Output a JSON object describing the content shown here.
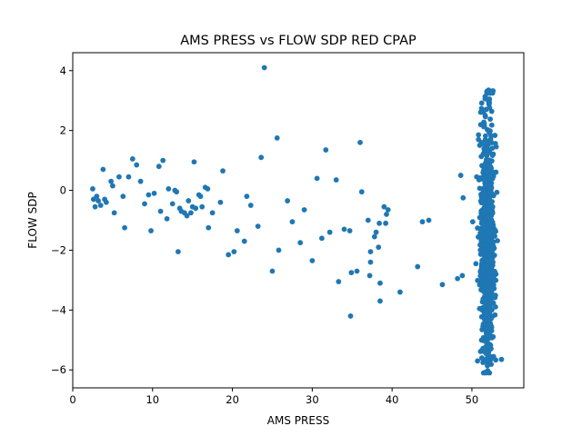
{
  "chart_data": {
    "type": "scatter",
    "title": "AMS PRESS vs FLOW SDP RED CPAP",
    "xlabel": "AMS PRESS",
    "ylabel": "FLOW SDP",
    "xlim": [
      0,
      56.5
    ],
    "ylim": [
      -6.6,
      4.6
    ],
    "xticks": [
      0,
      10,
      20,
      30,
      40,
      50
    ],
    "yticks": [
      -6,
      -4,
      -2,
      0,
      2,
      4
    ],
    "x_tick_labels": [
      "0",
      "10",
      "20",
      "30",
      "40",
      "50"
    ],
    "y_tick_labels": [
      "−6",
      "−4",
      "−2",
      "0",
      "2",
      "4"
    ],
    "grid": false,
    "marker_color": "#1f77b4",
    "series": [
      {
        "points": [
          [
            2.5,
            0.05
          ],
          [
            2.6,
            -0.3
          ],
          [
            2.8,
            -0.55
          ],
          [
            3.0,
            -0.2
          ],
          [
            3.2,
            -0.35
          ],
          [
            3.5,
            -0.5
          ],
          [
            3.8,
            0.7
          ],
          [
            4.0,
            -0.3
          ],
          [
            4.2,
            -0.4
          ],
          [
            4.8,
            0.3
          ],
          [
            5.0,
            0.15
          ],
          [
            5.2,
            -0.75
          ],
          [
            5.8,
            0.45
          ],
          [
            6.3,
            -0.2
          ],
          [
            6.5,
            -1.25
          ],
          [
            7.0,
            0.45
          ],
          [
            7.5,
            1.05
          ],
          [
            8.0,
            0.85
          ],
          [
            8.5,
            0.3
          ],
          [
            9.0,
            -0.45
          ],
          [
            9.5,
            -0.15
          ],
          [
            9.8,
            -1.35
          ],
          [
            10.2,
            -0.1
          ],
          [
            10.8,
            0.8
          ],
          [
            11.0,
            -0.7
          ],
          [
            11.3,
            1.0
          ],
          [
            11.8,
            -0.95
          ],
          [
            12.0,
            0.05
          ],
          [
            12.5,
            -0.45
          ],
          [
            12.8,
            0.0
          ],
          [
            13.0,
            -0.05
          ],
          [
            13.2,
            -2.05
          ],
          [
            13.4,
            -0.6
          ],
          [
            13.6,
            -0.7
          ],
          [
            14.0,
            -0.75
          ],
          [
            14.3,
            -0.85
          ],
          [
            14.5,
            -0.35
          ],
          [
            14.8,
            -0.75
          ],
          [
            15.0,
            -0.55
          ],
          [
            15.2,
            0.95
          ],
          [
            15.4,
            -0.6
          ],
          [
            15.8,
            -0.15
          ],
          [
            16.0,
            -0.2
          ],
          [
            16.2,
            -0.55
          ],
          [
            16.6,
            0.1
          ],
          [
            16.9,
            0.05
          ],
          [
            17.0,
            -1.25
          ],
          [
            17.5,
            -0.75
          ],
          [
            18.5,
            -0.4
          ],
          [
            18.8,
            0.65
          ],
          [
            19.5,
            -2.15
          ],
          [
            20.2,
            -2.05
          ],
          [
            20.6,
            -1.35
          ],
          [
            21.5,
            -1.7
          ],
          [
            21.8,
            -0.2
          ],
          [
            22.3,
            -0.5
          ],
          [
            23.2,
            -1.2
          ],
          [
            23.6,
            1.1
          ],
          [
            24.0,
            4.1
          ],
          [
            25.0,
            -2.7
          ],
          [
            25.6,
            1.75
          ],
          [
            25.8,
            -2.0
          ],
          [
            26.9,
            -0.35
          ],
          [
            27.5,
            -1.05
          ],
          [
            28.5,
            -1.75
          ],
          [
            29.0,
            -0.65
          ],
          [
            30.0,
            -2.35
          ],
          [
            30.6,
            0.4
          ],
          [
            31.2,
            -1.6
          ],
          [
            31.7,
            1.35
          ],
          [
            32.2,
            -1.4
          ],
          [
            33.0,
            0.35
          ],
          [
            33.3,
            -3.05
          ],
          [
            34.0,
            -1.3
          ],
          [
            34.7,
            -1.35
          ],
          [
            34.8,
            -4.2
          ],
          [
            34.9,
            -2.75
          ],
          [
            35.6,
            -2.7
          ],
          [
            36.0,
            1.6
          ],
          [
            36.2,
            -0.05
          ],
          [
            37.0,
            -1.0
          ],
          [
            37.2,
            -2.85
          ],
          [
            37.3,
            -2.05
          ],
          [
            37.3,
            -2.4
          ],
          [
            37.8,
            -1.55
          ],
          [
            38.0,
            -1.4
          ],
          [
            38.3,
            -1.9
          ],
          [
            38.4,
            -1.1
          ],
          [
            38.5,
            -3.7
          ],
          [
            38.5,
            -3.1
          ],
          [
            39.0,
            -0.55
          ],
          [
            39.2,
            -1.1
          ],
          [
            39.3,
            -0.8
          ],
          [
            39.5,
            -0.65
          ],
          [
            41.0,
            -3.4
          ],
          [
            43.2,
            -2.55
          ],
          [
            43.8,
            -1.05
          ],
          [
            44.6,
            -1.0
          ],
          [
            46.3,
            -3.15
          ],
          [
            48.2,
            -2.95
          ],
          [
            48.6,
            0.5
          ],
          [
            48.8,
            -2.85
          ],
          [
            48.9,
            -0.25
          ],
          [
            50.1,
            -1.05
          ],
          [
            50.5,
            -2.45
          ],
          [
            50.6,
            0.45
          ],
          [
            53.7,
            -5.65
          ]
        ],
        "cluster": {
          "x_range": [
            50.7,
            53.2
          ],
          "y_range": [
            -6.1,
            3.35
          ],
          "count": 900
        }
      }
    ]
  }
}
